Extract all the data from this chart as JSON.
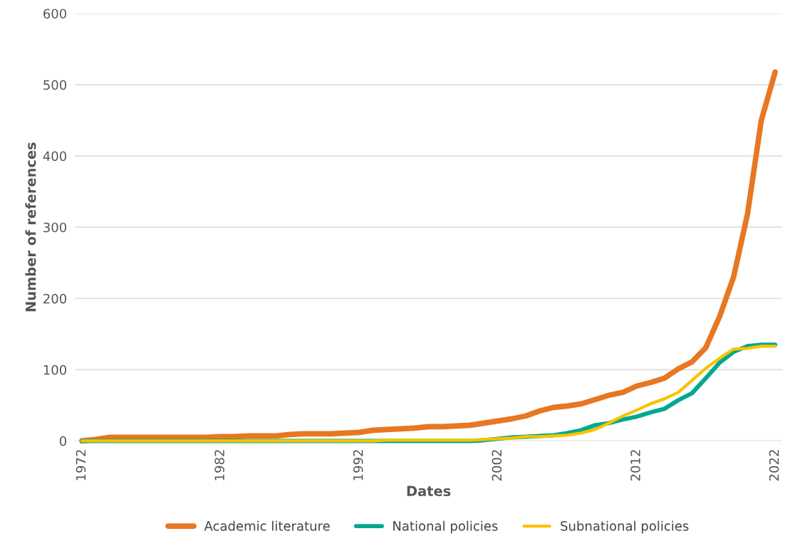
{
  "chart_data": {
    "type": "line",
    "xlabel": "Dates",
    "ylabel": "Number of references",
    "x": [
      1972,
      1973,
      1974,
      1975,
      1976,
      1977,
      1978,
      1979,
      1980,
      1981,
      1982,
      1983,
      1984,
      1985,
      1986,
      1987,
      1988,
      1989,
      1990,
      1991,
      1992,
      1993,
      1994,
      1995,
      1996,
      1997,
      1998,
      1999,
      2000,
      2001,
      2002,
      2003,
      2004,
      2005,
      2006,
      2007,
      2008,
      2009,
      2010,
      2011,
      2012,
      2013,
      2014,
      2015,
      2016,
      2017,
      2018,
      2019,
      2020,
      2021,
      2022
    ],
    "series": [
      {
        "name": "Academic literature",
        "color": "#e87722",
        "values": [
          0,
          2,
          5,
          5,
          5,
          5,
          5,
          5,
          5,
          5,
          6,
          6,
          7,
          7,
          7,
          9,
          10,
          10,
          10,
          11,
          12,
          15,
          16,
          17,
          18,
          20,
          20,
          21,
          22,
          25,
          28,
          31,
          35,
          42,
          47,
          49,
          52,
          58,
          64,
          68,
          77,
          82,
          88,
          101,
          111,
          131,
          175,
          230,
          318,
          450,
          518
        ]
      },
      {
        "name": "National policies",
        "color": "#00a88f",
        "values": [
          0,
          0,
          0,
          0,
          0,
          0,
          0,
          0,
          0,
          0,
          0,
          0,
          0,
          0,
          0,
          0,
          0,
          0,
          0,
          0,
          0,
          0,
          0,
          0,
          0,
          0,
          0,
          0,
          0,
          1,
          3,
          5,
          6,
          7,
          8,
          11,
          15,
          22,
          25,
          30,
          34,
          40,
          45,
          57,
          67,
          88,
          110,
          125,
          133,
          135,
          135
        ]
      },
      {
        "name": "Subnational policies",
        "color": "#f8c300",
        "values": [
          0,
          0,
          0,
          0,
          0,
          0,
          0,
          0,
          0,
          0,
          0,
          0,
          0,
          0,
          0,
          0,
          0,
          0,
          0,
          0,
          0,
          0,
          1,
          1,
          1,
          1,
          1,
          1,
          1,
          2,
          3,
          4,
          6,
          6,
          7,
          8,
          11,
          16,
          25,
          35,
          43,
          52,
          59,
          68,
          85,
          102,
          116,
          129,
          130,
          133,
          133
        ]
      }
    ],
    "xlim": [
      1971.5,
      2022.5
    ],
    "xticks": [
      1972,
      1982,
      1992,
      2002,
      2012,
      2022
    ],
    "ylim": [
      0,
      600
    ],
    "yticks": [
      0,
      100,
      200,
      300,
      400,
      500,
      600
    ],
    "grid": "y",
    "legend": "bottom",
    "marker": "none",
    "line_style": "solid"
  }
}
